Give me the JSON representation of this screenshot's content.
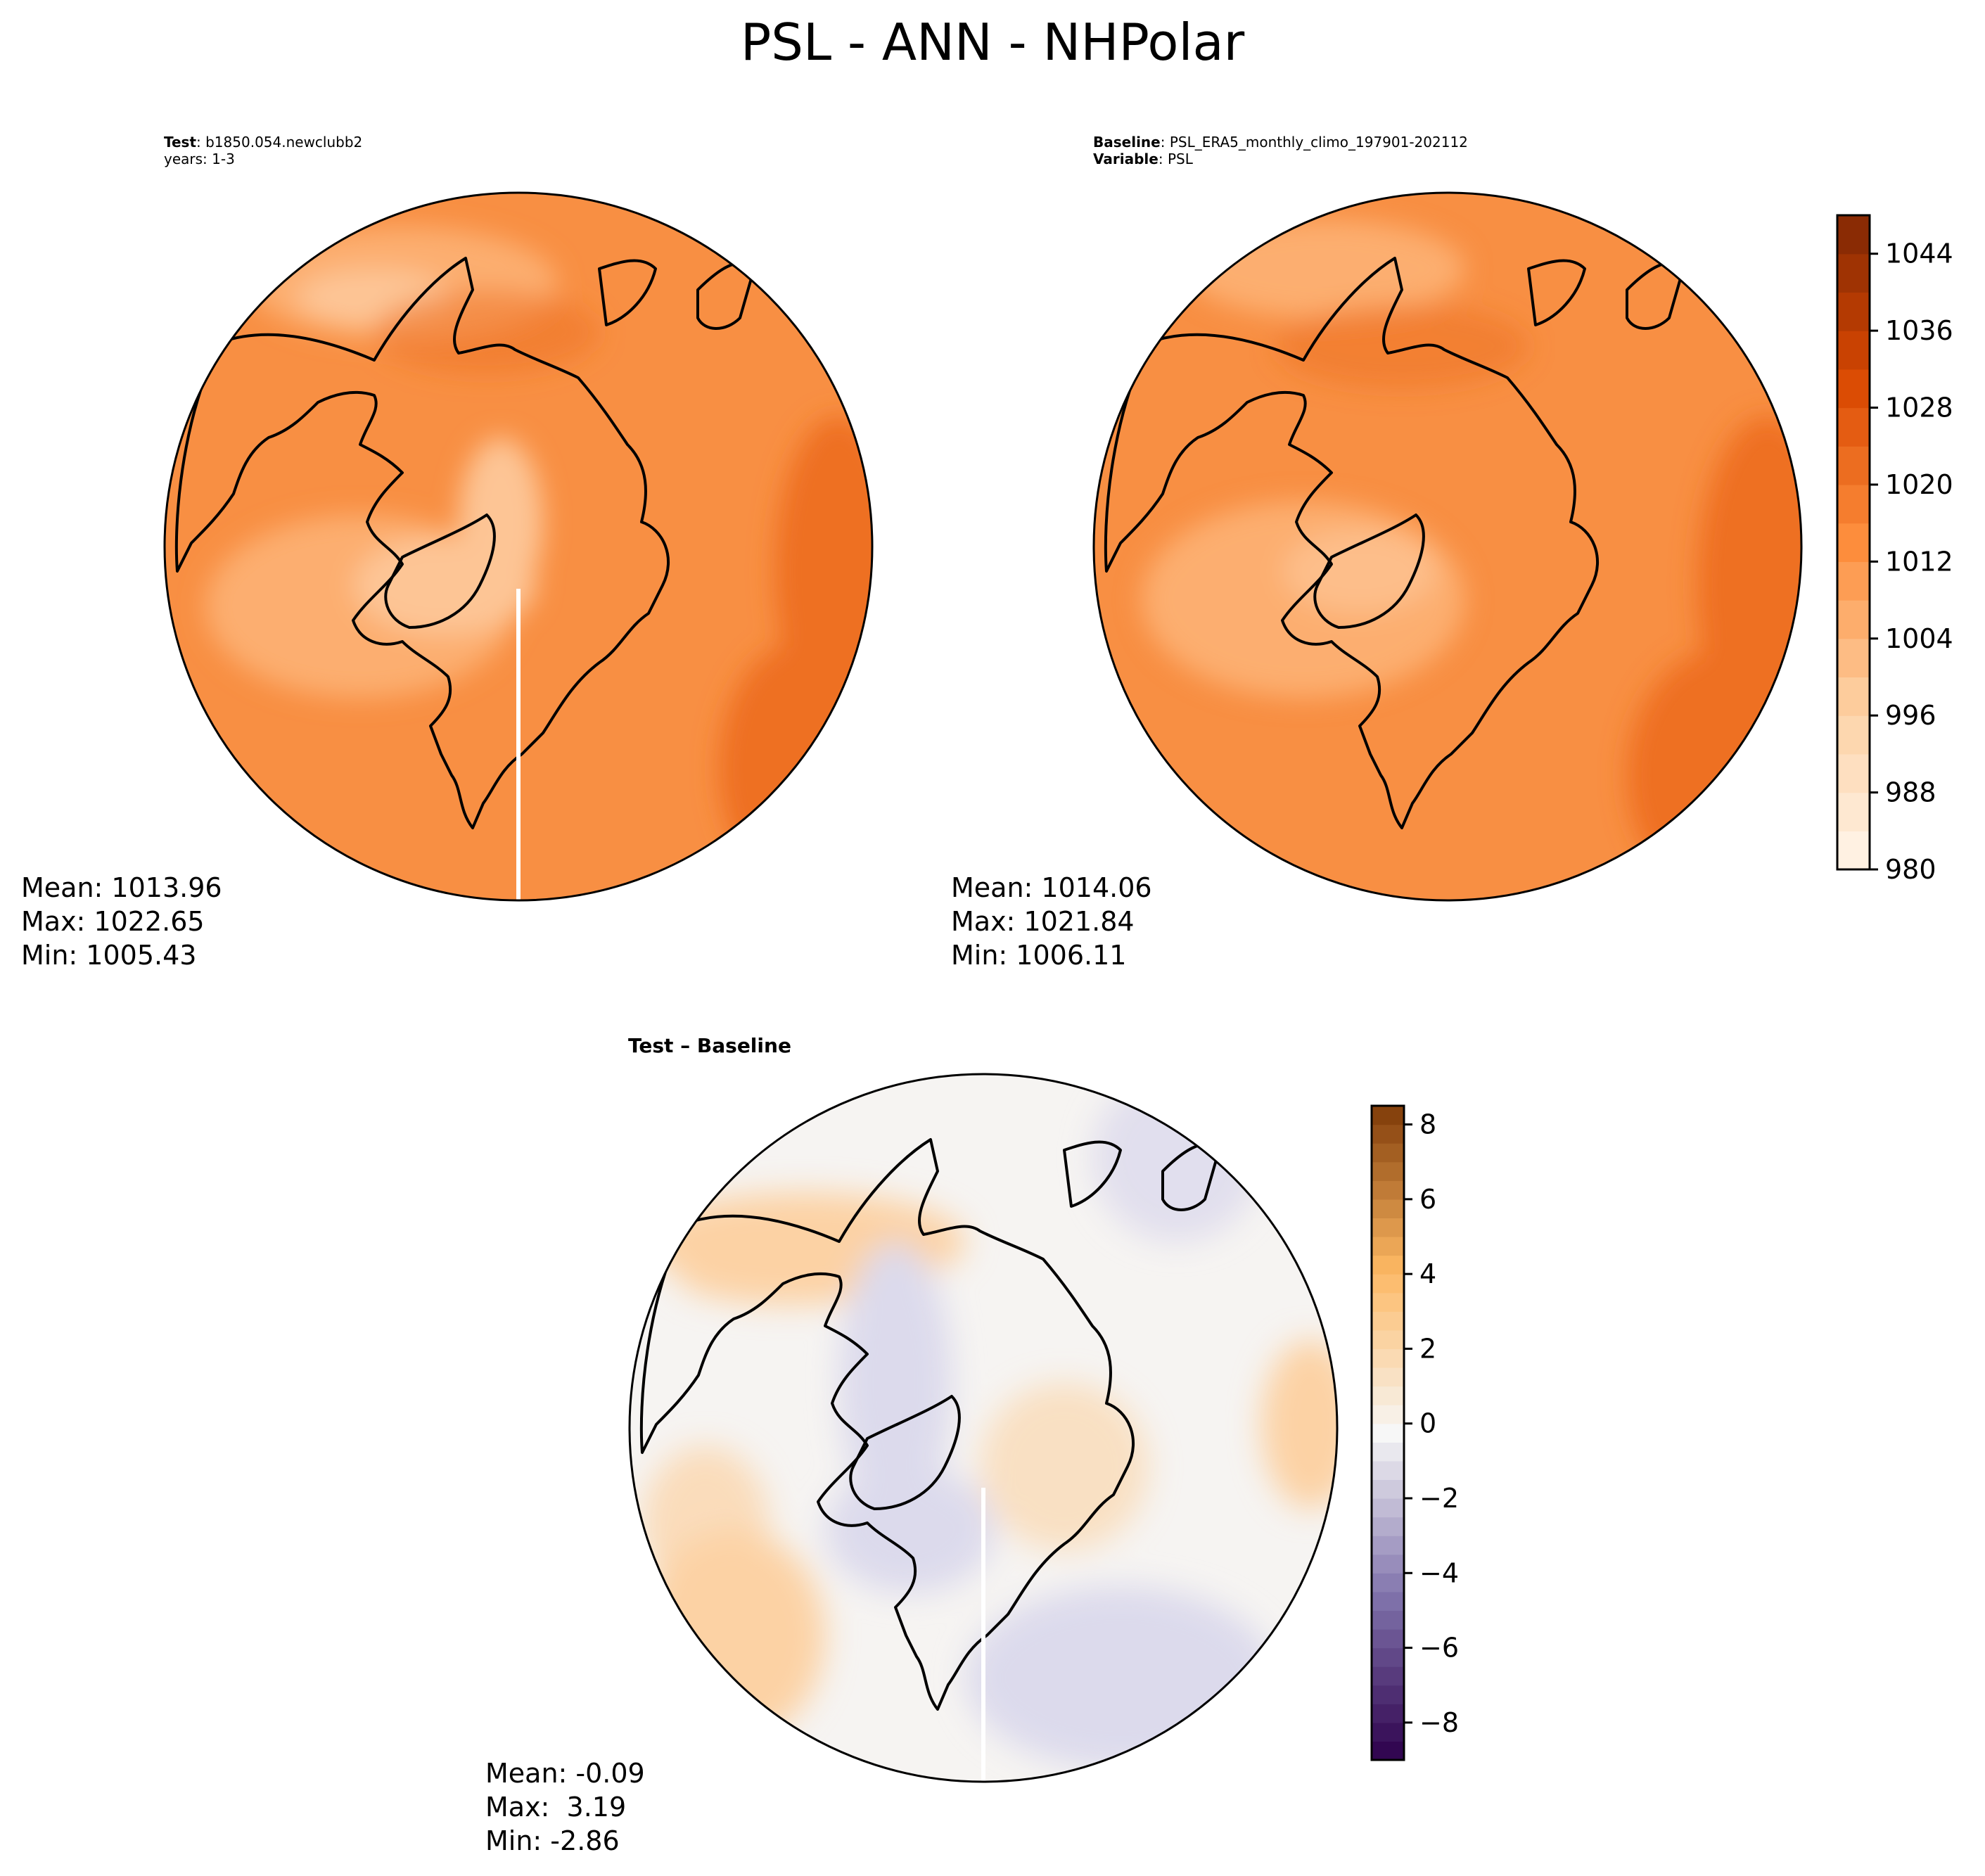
{
  "title": "PSL - ANN - NHPolar",
  "panels": {
    "test": {
      "label_bold": "Test",
      "label_text": ": b1850.054.newclubb2",
      "line2": "years: 1-3",
      "stats": {
        "mean": "Mean: 1013.96",
        "max": "Max: 1022.65",
        "min": "Min: 1005.43"
      }
    },
    "baseline": {
      "label_bold": "Baseline",
      "label_text": ": PSL_ERA5_monthly_climo_197901-202112",
      "line2_bold": "Variable",
      "line2_text": ": PSL",
      "stats": {
        "mean": "Mean: 1014.06",
        "max": "Max: 1021.84",
        "min": "Min: 1006.11"
      }
    },
    "diff": {
      "label_bold": "Test – Baseline",
      "stats": {
        "mean": "Mean: -0.09",
        "max": "Max:  3.19",
        "min": "Min: -2.86"
      }
    }
  },
  "colorbars": {
    "psl": {
      "ticks": [
        "980",
        "988",
        "996",
        "1004",
        "1012",
        "1020",
        "1028",
        "1036",
        "1044"
      ],
      "range": [
        980,
        1048
      ],
      "colormap": "Oranges"
    },
    "diff": {
      "ticks": [
        "−8",
        "−6",
        "−4",
        "−2",
        "0",
        "2",
        "4",
        "6",
        "8"
      ],
      "range": [
        -9,
        8.5
      ],
      "colormap": "PuOr_r"
    }
  },
  "colors": {
    "psl_base": "#f88f43",
    "psl_high": "#ee6f22",
    "psl_low": "#fcae6f",
    "psl_lowest": "#fdc595",
    "diff_base": "#f6f4f2",
    "diff_pos": "#fcd2a4",
    "diff_neg": "#dcdaec"
  }
}
